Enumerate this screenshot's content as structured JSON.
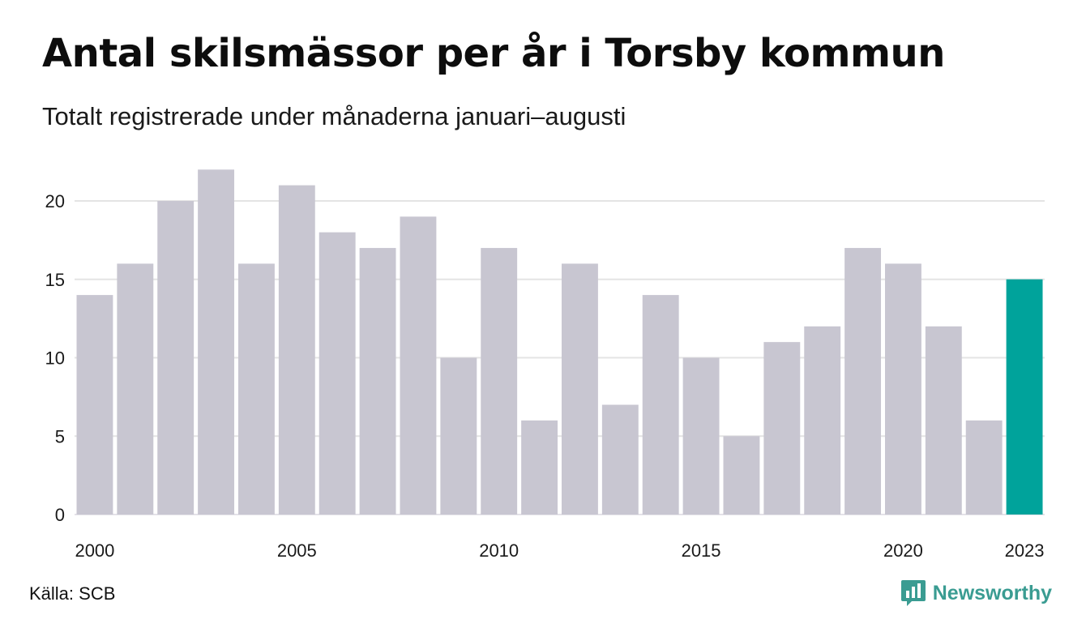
{
  "header": {
    "title": "Antal skilsmässor per år i Torsby kommun",
    "subtitle": "Totalt registrerade under månaderna januari–augusti"
  },
  "footer": {
    "source": "Källa: SCB",
    "brand": "Newsworthy",
    "brand_icon": "bar-chart-speech-bubble-icon"
  },
  "colors": {
    "bar": "#c8c6d1",
    "highlight": "#00a39b",
    "grid": "#e4e4e4",
    "brand": "#3a9c92"
  },
  "chart_data": {
    "type": "bar",
    "title": "Antal skilsmässor per år i Torsby kommun",
    "subtitle": "Totalt registrerade under månaderna januari–augusti",
    "xlabel": "",
    "ylabel": "",
    "categories": [
      "2000",
      "2001",
      "2002",
      "2003",
      "2004",
      "2005",
      "2006",
      "2007",
      "2008",
      "2009",
      "2010",
      "2011",
      "2012",
      "2013",
      "2014",
      "2015",
      "2016",
      "2017",
      "2018",
      "2019",
      "2020",
      "2021",
      "2022",
      "2023"
    ],
    "values": [
      14,
      16,
      20,
      22,
      16,
      21,
      18,
      17,
      19,
      10,
      17,
      6,
      16,
      7,
      14,
      10,
      5,
      11,
      12,
      17,
      16,
      12,
      6,
      15
    ],
    "highlight_category": "2023",
    "x_tick_labels": [
      "2000",
      "2005",
      "2010",
      "2015",
      "2020",
      "2023"
    ],
    "y_ticks": [
      0,
      5,
      10,
      15,
      20
    ],
    "ylim": [
      0,
      22
    ],
    "grid": true,
    "legend": "none"
  }
}
